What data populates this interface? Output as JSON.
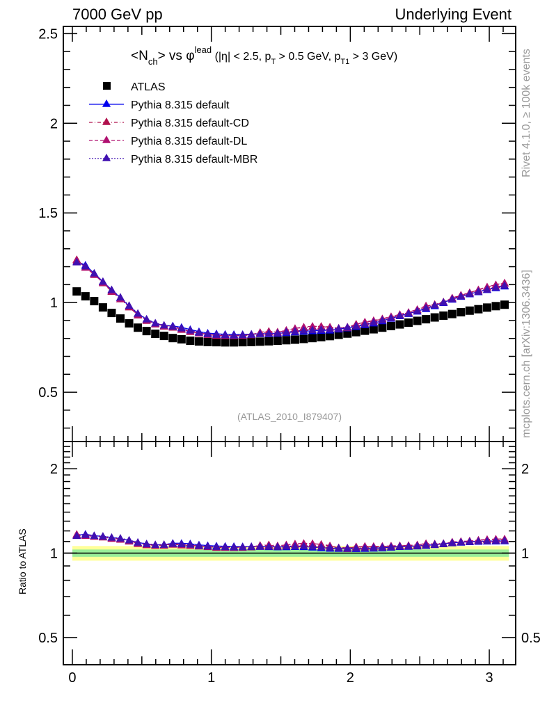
{
  "header": {
    "left": "7000 GeV pp",
    "right": "Underlying Event"
  },
  "side_text": {
    "top": "Rivet 4.1.0, ≥ 100k events",
    "bottom": "mcplots.cern.ch [arXiv:1306.3436]"
  },
  "chart_data": [
    {
      "type": "scatter",
      "panel": "main",
      "title_parts": {
        "pre": "<N",
        "sub1": "ch",
        "mid": "> vs φ",
        "sup": "lead",
        "cuts_a": " (|η| < 2.5, p",
        "sub2": "T",
        "cuts_b": " > 0.5 GeV, p",
        "sub3": "T1",
        "cuts_c": " > 3 GeV)"
      },
      "watermark": "(ATLAS_2010_I879407)",
      "xlim": [
        -0.065,
        3.19
      ],
      "ylim": [
        0.225,
        2.54
      ],
      "yticks": [
        0.5,
        1,
        1.5,
        2,
        2.5
      ],
      "ytick_labels": [
        "0.5",
        "1",
        "1.5",
        "2",
        "2.5"
      ],
      "legend_placement": "top-left",
      "x": [
        0.0314,
        0.0942,
        0.1571,
        0.2199,
        0.2827,
        0.3456,
        0.4084,
        0.4712,
        0.5341,
        0.5969,
        0.6597,
        0.7226,
        0.7854,
        0.8482,
        0.9111,
        0.9739,
        1.0367,
        1.0996,
        1.1624,
        1.2252,
        1.2881,
        1.3509,
        1.4137,
        1.4765,
        1.5394,
        1.6022,
        1.665,
        1.7279,
        1.7907,
        1.8535,
        1.9164,
        1.9792,
        2.042,
        2.1049,
        2.1677,
        2.2305,
        2.2934,
        2.3562,
        2.419,
        2.4819,
        2.5447,
        2.6075,
        2.6704,
        2.7332,
        2.796,
        2.8588,
        2.9217,
        2.9845,
        3.0473,
        3.1102
      ],
      "series": [
        {
          "name": "ATLAS",
          "marker": "square",
          "color": "#000000",
          "values": [
            1.062,
            1.035,
            1.008,
            0.973,
            0.942,
            0.911,
            0.884,
            0.86,
            0.841,
            0.826,
            0.814,
            0.802,
            0.795,
            0.787,
            0.783,
            0.78,
            0.779,
            0.778,
            0.778,
            0.779,
            0.78,
            0.782,
            0.784,
            0.787,
            0.79,
            0.793,
            0.797,
            0.802,
            0.807,
            0.813,
            0.82,
            0.827,
            0.835,
            0.843,
            0.851,
            0.86,
            0.869,
            0.878,
            0.888,
            0.898,
            0.907,
            0.917,
            0.927,
            0.936,
            0.946,
            0.955,
            0.963,
            0.972,
            0.98,
            0.988
          ]
        },
        {
          "name": "Pythia 8.315 default",
          "marker": "triangle",
          "line": "solid",
          "color": "#0000ee",
          "values": [
            1.229,
            1.209,
            1.163,
            1.116,
            1.07,
            1.027,
            0.98,
            0.938,
            0.907,
            0.884,
            0.872,
            0.87,
            0.862,
            0.85,
            0.838,
            0.83,
            0.826,
            0.823,
            0.822,
            0.822,
            0.824,
            0.826,
            0.826,
            0.828,
            0.832,
            0.836,
            0.84,
            0.842,
            0.844,
            0.846,
            0.852,
            0.858,
            0.866,
            0.876,
            0.886,
            0.898,
            0.912,
            0.926,
            0.938,
            0.952,
            0.966,
            0.982,
            1.0,
            1.018,
            1.034,
            1.048,
            1.06,
            1.072,
            1.082,
            1.092
          ]
        },
        {
          "name": "Pythia 8.315 default-CD",
          "marker": "triangle",
          "line": "dashdot",
          "color": "#b0104c",
          "values": [
            1.24,
            1.198,
            1.158,
            1.11,
            1.062,
            1.02,
            0.975,
            0.93,
            0.9,
            0.88,
            0.868,
            0.862,
            0.85,
            0.838,
            0.83,
            0.822,
            0.816,
            0.815,
            0.814,
            0.816,
            0.82,
            0.834,
            0.84,
            0.836,
            0.844,
            0.852,
            0.86,
            0.866,
            0.868,
            0.864,
            0.856,
            0.86,
            0.88,
            0.89,
            0.898,
            0.908,
            0.92,
            0.932,
            0.944,
            0.96,
            0.98,
            0.99,
            1.004,
            1.024,
            1.04,
            1.056,
            1.07,
            1.086,
            1.098,
            1.108
          ]
        },
        {
          "name": "Pythia 8.315 default-DL",
          "marker": "triangle",
          "line": "dashed",
          "color": "#b01070",
          "values": [
            1.236,
            1.196,
            1.156,
            1.112,
            1.064,
            1.022,
            0.978,
            0.932,
            0.902,
            0.882,
            0.87,
            0.864,
            0.852,
            0.84,
            0.83,
            0.824,
            0.818,
            0.816,
            0.816,
            0.818,
            0.822,
            0.832,
            0.836,
            0.834,
            0.846,
            0.856,
            0.864,
            0.868,
            0.866,
            0.862,
            0.858,
            0.864,
            0.878,
            0.892,
            0.9,
            0.91,
            0.922,
            0.934,
            0.946,
            0.962,
            0.982,
            0.986,
            1.002,
            1.026,
            1.042,
            1.054,
            1.072,
            1.088,
            1.1,
            1.11
          ]
        },
        {
          "name": "Pythia 8.315 default-MBR",
          "marker": "triangle",
          "line": "dotted",
          "color": "#4010b0",
          "values": [
            1.226,
            1.204,
            1.164,
            1.118,
            1.072,
            1.03,
            0.984,
            0.94,
            0.908,
            0.886,
            0.874,
            0.868,
            0.858,
            0.846,
            0.834,
            0.826,
            0.822,
            0.82,
            0.818,
            0.82,
            0.822,
            0.826,
            0.828,
            0.83,
            0.836,
            0.84,
            0.846,
            0.848,
            0.85,
            0.852,
            0.856,
            0.862,
            0.87,
            0.88,
            0.89,
            0.902,
            0.914,
            0.928,
            0.94,
            0.954,
            0.97,
            0.986,
            1.002,
            1.02,
            1.036,
            1.05,
            1.062,
            1.074,
            1.086,
            1.096
          ]
        }
      ]
    },
    {
      "type": "scatter",
      "panel": "ratio",
      "ylabel": "Ratio to ATLAS",
      "yscale": "log",
      "ylim": [
        0.4,
        2.5
      ],
      "yticks": [
        0.5,
        1,
        2
      ],
      "ytick_labels": [
        "0.5",
        "1",
        "2"
      ],
      "xlim": [
        -0.065,
        3.19
      ],
      "xticks": [
        0,
        1,
        2,
        3
      ],
      "xtick_labels": [
        "0",
        "1",
        "2",
        "3"
      ],
      "reference_line": 1,
      "bands": [
        {
          "name": "total-uncertainty",
          "color": "#ffff99",
          "low": 0.94,
          "high": 1.06
        },
        {
          "name": "stat-uncertainty",
          "color": "#99ee99",
          "low": 0.97,
          "high": 1.03
        }
      ],
      "note": "ratios computed as series value / ATLAS value"
    }
  ]
}
